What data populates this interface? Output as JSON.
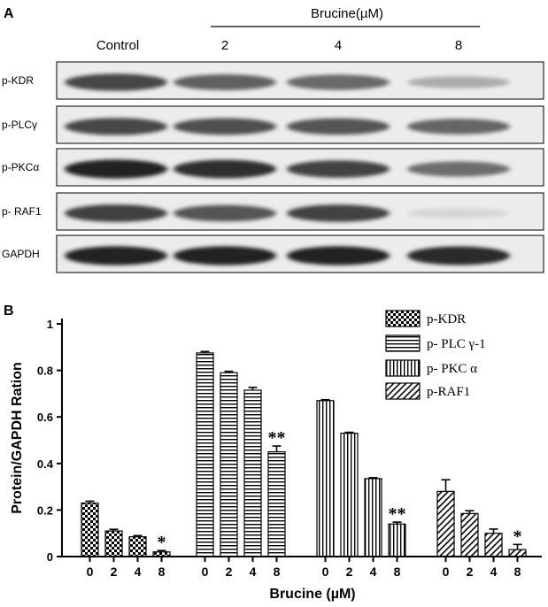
{
  "panel_a": {
    "letter": "A",
    "treatment_label": "Brucine(µM)",
    "lanes": [
      "Control",
      "2",
      "4",
      "8"
    ],
    "rows": [
      {
        "label": "p-KDR",
        "intensity": [
          0.78,
          0.66,
          0.62,
          0.3
        ]
      },
      {
        "label": "p-PLCγ",
        "intensity": [
          0.78,
          0.74,
          0.72,
          0.64
        ]
      },
      {
        "label": "p-PKCα",
        "intensity": [
          0.95,
          0.9,
          0.8,
          0.6
        ]
      },
      {
        "label": "p- RAF1",
        "intensity": [
          0.82,
          0.72,
          0.8,
          0.1
        ]
      },
      {
        "label": "GAPDH",
        "intensity": [
          0.95,
          0.95,
          0.95,
          0.92
        ]
      }
    ]
  },
  "chart_data": {
    "type": "bar",
    "panel_letter": "B",
    "title": "",
    "xlabel": "Brucine (µM)",
    "ylabel": "Protein/GAPDH Ration",
    "ylim": [
      0,
      1
    ],
    "yticks": [
      "0",
      "0.2",
      "0.4",
      "0.6",
      "0.8",
      "1"
    ],
    "categories": [
      "0",
      "2",
      "4",
      "8"
    ],
    "legend_position": "top-right",
    "series": [
      {
        "name": "p-KDR",
        "pattern": "checker",
        "values": [
          0.23,
          0.11,
          0.085,
          0.02
        ],
        "errors": [
          0.008,
          0.007,
          0.005,
          0.006
        ],
        "sig": [
          "",
          "",
          "",
          "*"
        ]
      },
      {
        "name": "p- PLC γ-1",
        "pattern": "horizontal",
        "values": [
          0.875,
          0.79,
          0.715,
          0.45
        ],
        "errors": [
          0.006,
          0.006,
          0.012,
          0.025
        ],
        "sig": [
          "",
          "",
          "",
          "**"
        ]
      },
      {
        "name": "p- PKC α",
        "pattern": "vertical",
        "values": [
          0.67,
          0.53,
          0.335,
          0.14
        ],
        "errors": [
          0.004,
          0.004,
          0.004,
          0.008
        ],
        "sig": [
          "",
          "",
          "",
          "**"
        ]
      },
      {
        "name": "p-RAF1",
        "pattern": "diagonal",
        "values": [
          0.28,
          0.185,
          0.1,
          0.03
        ],
        "errors": [
          0.05,
          0.012,
          0.018,
          0.022
        ],
        "sig": [
          "",
          "",
          "",
          "*"
        ]
      }
    ]
  }
}
